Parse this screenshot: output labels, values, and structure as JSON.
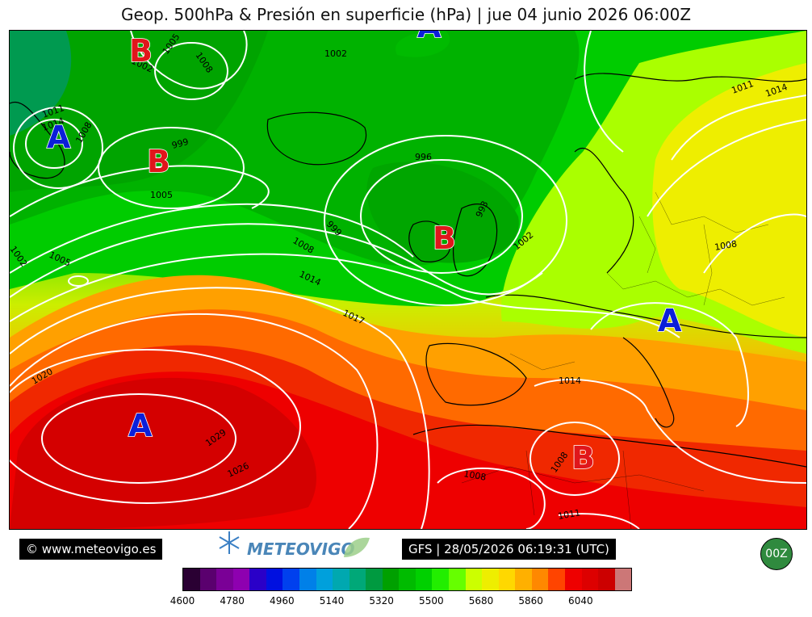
{
  "title": "Geop. 500hPa & Presión en superficie (hPa) | jue 04 junio 2026 06:00Z",
  "footer": {
    "copyright": "© www.meteovigo.es",
    "logo_text": "METEOVIGO",
    "run_info": "GFS | 28/05/2026 06:19:31 (UTC)",
    "run_button": "00Z"
  },
  "pressure_centers": [
    {
      "label": "A",
      "type": "high"
    },
    {
      "label": "A",
      "type": "high"
    },
    {
      "label": "A",
      "type": "high"
    },
    {
      "label": "A",
      "type": "high"
    },
    {
      "label": "B",
      "type": "low"
    },
    {
      "label": "B",
      "type": "low"
    },
    {
      "label": "B",
      "type": "low"
    },
    {
      "label": "B",
      "type": "low"
    }
  ],
  "isobar_labels": [
    "1002",
    "1005",
    "1008",
    "1002",
    "1011",
    "1014",
    "1008",
    "999",
    "1005",
    "996",
    "993",
    "999",
    "1008",
    "1002",
    "1011",
    "1014",
    "1002",
    "1005",
    "1014",
    "1017",
    "1008",
    "1020",
    "1014",
    "1029",
    "1026",
    "1008",
    "1008",
    "1011"
  ],
  "colorbar": {
    "colors": [
      "#2a0033",
      "#5a006e",
      "#7a0096",
      "#8e00b0",
      "#2a00c8",
      "#0010e0",
      "#0040ee",
      "#0080e8",
      "#00a0dc",
      "#00a8b0",
      "#00a878",
      "#009a40",
      "#00a000",
      "#00bb00",
      "#00d000",
      "#22ee00",
      "#66ff00",
      "#ccff00",
      "#eeee00",
      "#ffd800",
      "#ffb000",
      "#ff8800",
      "#ff4400",
      "#ee0000",
      "#dd0000",
      "#cc0000",
      "#cc7777"
    ],
    "tick_labels": [
      "4600",
      "4780",
      "4960",
      "5140",
      "5320",
      "5500",
      "5680",
      "5860",
      "6040"
    ]
  },
  "colors": {
    "high": "#0b1fd9",
    "low": "#e0161b",
    "isobar": "#ffffff"
  }
}
